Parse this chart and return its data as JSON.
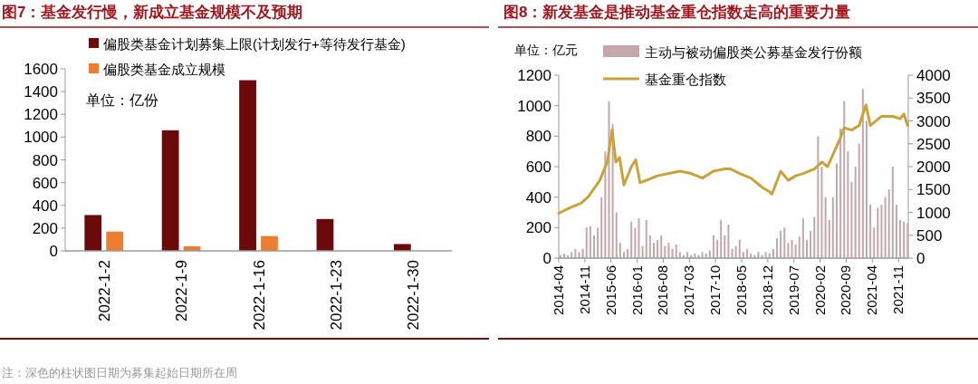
{
  "chart_data": [
    {
      "type": "bar",
      "title": "图7：基金发行慢，新成立基金规模不及预期",
      "categories": [
        "2022-1-2",
        "2022-1-9",
        "2022-1-16",
        "2022-1-23",
        "2022-1-30"
      ],
      "series": [
        {
          "name": "偏股类基金计划募集上限(计划发行+等待发行基金)",
          "color": "#6b0a0a",
          "values": [
            315,
            1060,
            1500,
            280,
            60
          ]
        },
        {
          "name": "偏股类基金成立规模",
          "color": "#ed7d31",
          "values": [
            170,
            40,
            130,
            null,
            null
          ]
        }
      ],
      "ylim": [
        0,
        1600
      ],
      "yticks": [
        0,
        200,
        400,
        600,
        800,
        1000,
        1200,
        1400,
        1600
      ],
      "legend": "top",
      "grid": false,
      "annotations": [
        "单位：亿份",
        "注：深色的柱状图日期为募集起始日期所在周"
      ]
    },
    {
      "type": "bar",
      "title": "图8：新发基金是推动基金重仓指数走高的重要力量",
      "series": [
        {
          "name": "主动与被动偏股类公募基金发行份额",
          "color": "#c4a7aa",
          "x": [
            "2014-04-15",
            "2014-05-15",
            "2014-06-15",
            "2014-07-15",
            "2014-08-15",
            "2014-09-15",
            "2014-10-15",
            "2014-11-15",
            "2014-12-15",
            "2015-01-15",
            "2015-02-15",
            "2015-03-15",
            "2015-04-15",
            "2015-05-15",
            "2015-06-15",
            "2015-07-15",
            "2015-08-15",
            "2015-09-15",
            "2015-10-15",
            "2015-11-15",
            "2015-12-15",
            "2016-01-15",
            "2016-02-15",
            "2016-03-15",
            "2016-04-15",
            "2016-05-15",
            "2016-06-15",
            "2016-07-15",
            "2016-08-15",
            "2016-09-15",
            "2016-10-15",
            "2016-11-15",
            "2016-12-15",
            "2017-01-15",
            "2017-02-15",
            "2017-03-15",
            "2017-04-15",
            "2017-05-15",
            "2017-06-15",
            "2017-07-15",
            "2017-08-15",
            "2017-09-15",
            "2017-10-15",
            "2017-11-15",
            "2017-12-15",
            "2018-01-15",
            "2018-02-15",
            "2018-03-15",
            "2018-04-15",
            "2018-05-15",
            "2018-06-15",
            "2018-07-15",
            "2018-08-15",
            "2018-09-15",
            "2018-10-15",
            "2018-11-15",
            "2018-12-15",
            "2019-01-15",
            "2019-02-15",
            "2019-03-15",
            "2019-04-15",
            "2019-05-15",
            "2019-06-15",
            "2019-07-15",
            "2019-08-15",
            "2019-09-15",
            "2019-10-15",
            "2019-11-15",
            "2019-12-15",
            "2020-01-15",
            "2020-02-15",
            "2020-03-15",
            "2020-04-15",
            "2020-05-15",
            "2020-06-15",
            "2020-07-15",
            "2020-08-15",
            "2020-09-15",
            "2020-10-15",
            "2020-11-15",
            "2020-12-15",
            "2021-01-15",
            "2021-02-15",
            "2021-03-15",
            "2021-04-15",
            "2021-05-15",
            "2021-06-15",
            "2021-07-15",
            "2021-08-15",
            "2021-09-15",
            "2021-10-15",
            "2021-11-15",
            "2021-12-15",
            "2022-01-15"
          ],
          "values": [
            20,
            30,
            20,
            40,
            60,
            40,
            60,
            200,
            210,
            150,
            200,
            400,
            700,
            1030,
            880,
            300,
            100,
            40,
            60,
            240,
            200,
            260,
            80,
            250,
            150,
            100,
            120,
            150,
            80,
            100,
            60,
            90,
            40,
            20,
            40,
            20,
            30,
            20,
            40,
            30,
            50,
            150,
            120,
            250,
            150,
            220,
            60,
            80,
            120,
            40,
            60,
            30,
            20,
            40,
            20,
            40,
            30,
            60,
            130,
            180,
            200,
            100,
            120,
            90,
            140,
            260,
            120,
            180,
            270,
            800,
            600,
            400,
            250,
            400,
            620,
            850,
            1030,
            700,
            500,
            600,
            750,
            1110,
            900,
            350,
            200,
            330,
            350,
            400,
            450,
            600,
            350,
            250,
            240,
            230
          ]
        },
        {
          "name": "基金重仓指数",
          "color": "#c9a23a",
          "type": "line",
          "axis": "y2",
          "x": [
            "2014-04-01",
            "2014-07-01",
            "2014-10-01",
            "2014-12-01",
            "2015-03-01",
            "2015-05-01",
            "2015-06-10",
            "2015-07-10",
            "2015-08-10",
            "2015-09-15",
            "2015-11-15",
            "2015-12-20",
            "2016-01-25",
            "2016-03-15",
            "2016-06-15",
            "2016-09-15",
            "2016-12-15",
            "2017-03-15",
            "2017-06-15",
            "2017-09-15",
            "2017-12-15",
            "2018-02-01",
            "2018-04-15",
            "2018-07-15",
            "2018-10-15",
            "2018-12-15",
            "2019-01-05",
            "2019-03-15",
            "2019-05-15",
            "2019-07-15",
            "2019-09-15",
            "2019-12-15",
            "2020-02-15",
            "2020-04-01",
            "2020-07-10",
            "2020-08-15",
            "2020-10-15",
            "2020-12-15",
            "2021-02-10",
            "2021-03-15",
            "2021-06-15",
            "2021-09-15",
            "2021-11-15",
            "2021-12-15",
            "2022-01-15"
          ],
          "values": [
            980,
            1100,
            1200,
            1350,
            1700,
            2100,
            2800,
            2100,
            2200,
            1600,
            2000,
            2150,
            1650,
            1700,
            1800,
            1850,
            1900,
            1850,
            1750,
            1900,
            1950,
            1950,
            1850,
            1750,
            1550,
            1450,
            1400,
            1900,
            1700,
            1800,
            1850,
            1950,
            2100,
            2000,
            2600,
            2850,
            2800,
            2900,
            3350,
            2900,
            3100,
            3100,
            3050,
            3150,
            2900
          ]
        }
      ],
      "xlim": [
        "2014-04",
        "2022-01-20"
      ],
      "xticks": [
        "2014-04",
        "2014-11",
        "2015-06",
        "2016-01",
        "2016-08",
        "2017-03",
        "2017-10",
        "2018-05",
        "2018-12",
        "2019-07",
        "2020-02",
        "2020-09",
        "2021-04",
        "2021-11"
      ],
      "ylim": [
        0,
        1200
      ],
      "yticks": [
        0,
        200,
        400,
        600,
        800,
        1000,
        1200
      ],
      "y2lim": [
        0,
        4000
      ],
      "y2ticks": [
        0,
        500,
        1000,
        1500,
        2000,
        2500,
        3000,
        3500,
        4000
      ],
      "legend": "top",
      "grid": false,
      "annotations": [
        "单位：亿元"
      ]
    }
  ]
}
